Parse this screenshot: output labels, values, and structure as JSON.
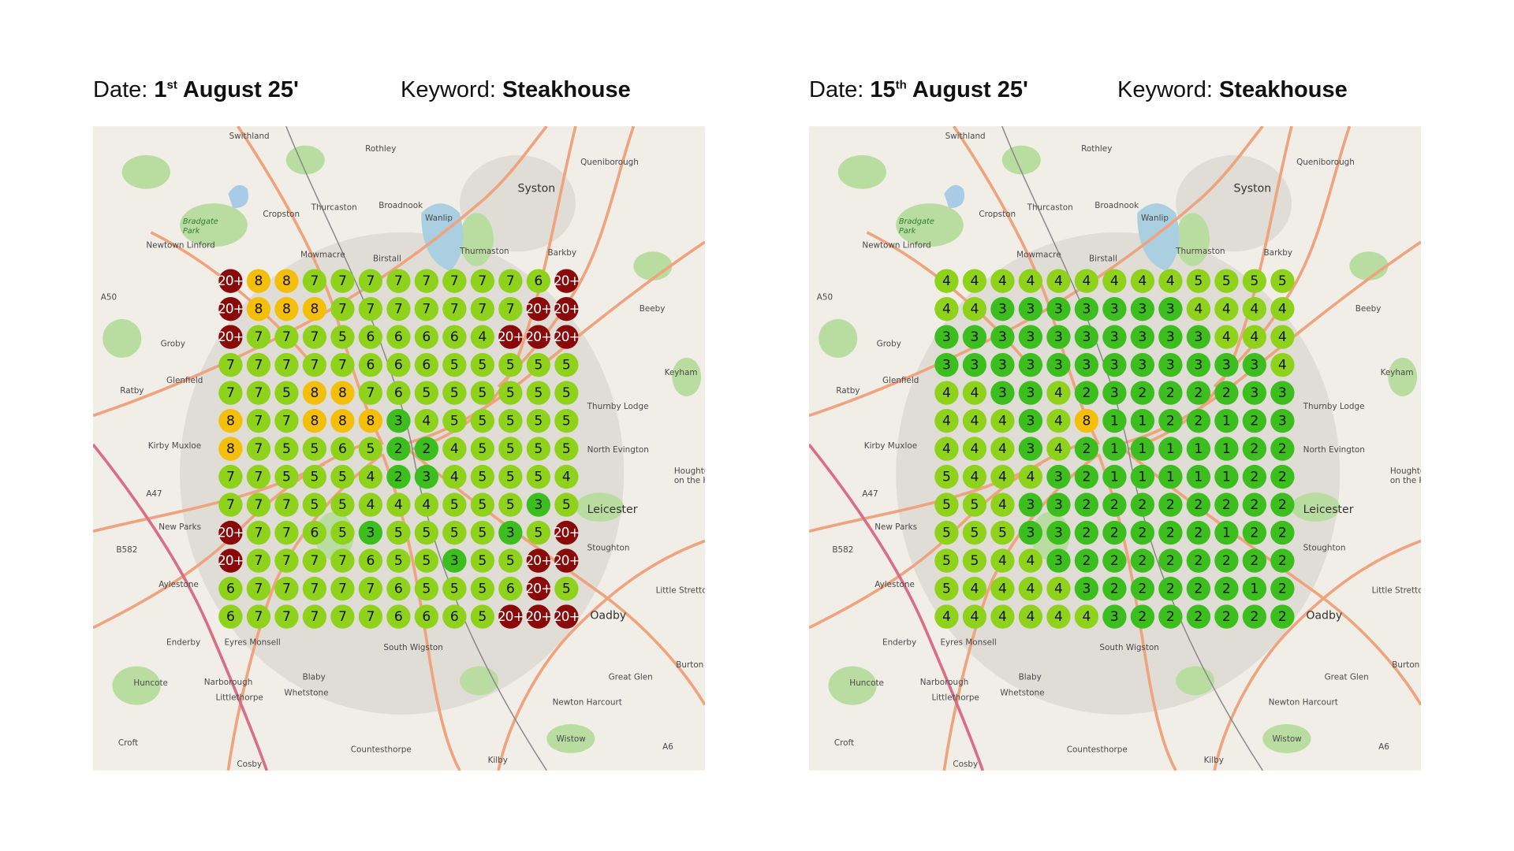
{
  "panels": [
    {
      "date_label": "Date:",
      "date_day": "1",
      "date_suffix": "st",
      "date_rest": "August 25'",
      "keyword_label": "Keyword:",
      "keyword": "Steakhouse",
      "grid": [
        [
          "20+",
          "8",
          "8",
          "7",
          "7",
          "7",
          "7",
          "7",
          "7",
          "7",
          "7",
          "6",
          "20+"
        ],
        [
          "20+",
          "8",
          "8",
          "8",
          "7",
          "7",
          "7",
          "7",
          "7",
          "7",
          "7",
          "20+",
          "20+"
        ],
        [
          "20+",
          "7",
          "7",
          "7",
          "5",
          "6",
          "6",
          "6",
          "6",
          "4",
          "20+",
          "20+",
          "20+"
        ],
        [
          "7",
          "7",
          "7",
          "7",
          "7",
          "6",
          "6",
          "6",
          "5",
          "5",
          "5",
          "5",
          "5"
        ],
        [
          "7",
          "7",
          "5",
          "8",
          "8",
          "7",
          "6",
          "5",
          "5",
          "5",
          "5",
          "5",
          "5"
        ],
        [
          "8",
          "7",
          "7",
          "8",
          "8",
          "8",
          "3",
          "4",
          "5",
          "5",
          "5",
          "5",
          "5"
        ],
        [
          "8",
          "7",
          "5",
          "5",
          "6",
          "5",
          "2",
          "2",
          "4",
          "5",
          "5",
          "5",
          "5"
        ],
        [
          "7",
          "7",
          "5",
          "5",
          "5",
          "4",
          "2",
          "3",
          "4",
          "5",
          "5",
          "5",
          "4"
        ],
        [
          "7",
          "7",
          "7",
          "5",
          "5",
          "4",
          "4",
          "4",
          "5",
          "5",
          "5",
          "3",
          "5"
        ],
        [
          "20+",
          "7",
          "7",
          "6",
          "5",
          "3",
          "5",
          "5",
          "5",
          "5",
          "3",
          "5",
          "20+"
        ],
        [
          "20+",
          "7",
          "7",
          "7",
          "7",
          "6",
          "5",
          "5",
          "3",
          "5",
          "5",
          "20+",
          "20+"
        ],
        [
          "6",
          "7",
          "7",
          "7",
          "7",
          "7",
          "6",
          "5",
          "5",
          "5",
          "6",
          "20+",
          "5"
        ],
        [
          "6",
          "7",
          "7",
          "7",
          "7",
          "7",
          "6",
          "6",
          "6",
          "5",
          "20+",
          "20+",
          "20+"
        ]
      ]
    },
    {
      "date_label": "Date:",
      "date_day": "15",
      "date_suffix": "th",
      "date_rest": "August 25'",
      "keyword_label": "Keyword:",
      "keyword": "Steakhouse",
      "grid": [
        [
          "4",
          "4",
          "4",
          "4",
          "4",
          "4",
          "4",
          "4",
          "4",
          "5",
          "5",
          "5",
          "5"
        ],
        [
          "4",
          "4",
          "3",
          "3",
          "3",
          "3",
          "3",
          "3",
          "3",
          "4",
          "4",
          "4",
          "4"
        ],
        [
          "3",
          "3",
          "3",
          "3",
          "3",
          "3",
          "3",
          "3",
          "3",
          "3",
          "4",
          "4",
          "4"
        ],
        [
          "3",
          "3",
          "3",
          "3",
          "3",
          "3",
          "3",
          "3",
          "3",
          "3",
          "3",
          "3",
          "4"
        ],
        [
          "4",
          "4",
          "3",
          "3",
          "4",
          "2",
          "3",
          "2",
          "2",
          "2",
          "2",
          "3",
          "3"
        ],
        [
          "4",
          "4",
          "4",
          "3",
          "4",
          "8",
          "1",
          "1",
          "2",
          "2",
          "1",
          "2",
          "3"
        ],
        [
          "4",
          "4",
          "4",
          "3",
          "4",
          "2",
          "1",
          "1",
          "1",
          "1",
          "1",
          "2",
          "2"
        ],
        [
          "5",
          "4",
          "4",
          "4",
          "3",
          "2",
          "1",
          "1",
          "1",
          "1",
          "1",
          "2",
          "2"
        ],
        [
          "5",
          "5",
          "4",
          "3",
          "3",
          "2",
          "2",
          "2",
          "2",
          "2",
          "2",
          "2",
          "2"
        ],
        [
          "5",
          "5",
          "5",
          "3",
          "3",
          "2",
          "2",
          "2",
          "2",
          "2",
          "1",
          "2",
          "2"
        ],
        [
          "5",
          "5",
          "4",
          "4",
          "3",
          "2",
          "2",
          "2",
          "2",
          "2",
          "2",
          "2",
          "2"
        ],
        [
          "5",
          "4",
          "4",
          "4",
          "4",
          "3",
          "2",
          "2",
          "2",
          "2",
          "2",
          "1",
          "2"
        ],
        [
          "4",
          "4",
          "4",
          "4",
          "4",
          "4",
          "3",
          "2",
          "2",
          "2",
          "2",
          "2",
          "2"
        ]
      ]
    }
  ],
  "map_places": [
    "Swithland",
    "Rothley",
    "Queniborough",
    "Syston",
    "Bradgate",
    "Park",
    "Cropston",
    "Thurcaston",
    "Broadnook",
    "Wanlip",
    "Newtown Linford",
    "Barkby",
    "Birstall",
    "Thurmaston",
    "Mowmacre",
    "Beeby",
    "Groby",
    "Keyham",
    "Glenfield",
    "Ratby",
    "Kirby Muxloe",
    "Houghton",
    "on the Hill",
    "Little Stretton",
    "Enderby",
    "Eyres Monsell",
    "Oadby",
    "South Wigston",
    "Huncote",
    "Narborough",
    "Blaby",
    "Littlethorpe",
    "Whetstone",
    "Great Glen",
    "Burton Overy",
    "Newton Harcourt",
    "Croft",
    "Countesthorpe",
    "Wistow",
    "Kilby",
    "Cosby",
    "A50",
    "A47",
    "B582",
    "A6",
    "North Evington",
    "Thurnby Lodge",
    "Stoughton",
    "Aylestone",
    "Leicester",
    "New Parks"
  ],
  "colors": {
    "rank_20_plus": "#8a0a0a",
    "rank_8": "#f4bf0a",
    "rank_4_to_7": "#8fd21c",
    "rank_1_to_3": "#3cbf1e",
    "map_background": "#f1eee8",
    "map_road": "#eea47e"
  }
}
